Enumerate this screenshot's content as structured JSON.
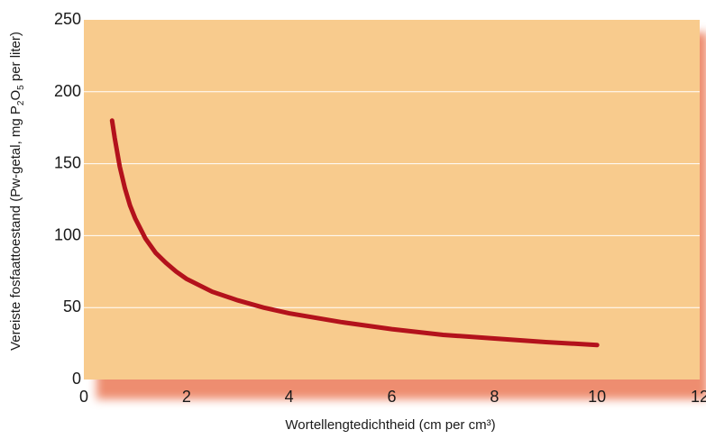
{
  "chart_data": {
    "type": "line",
    "title": "",
    "xlabel": "Wortellengtedichtheid (cm per cm³)",
    "ylabel": {
      "main": "Vereiste fosfaattoestand (Pw-getal, mg P",
      "sub1": "2",
      "mid": "O",
      "sub2": "5",
      "end": " per liter)"
    },
    "xlim": [
      0,
      12
    ],
    "ylim": [
      0,
      250
    ],
    "xticks": [
      "0",
      "2",
      "4",
      "6",
      "8",
      "10",
      "12"
    ],
    "yticks": [
      "0",
      "50",
      "100",
      "150",
      "200",
      "250"
    ],
    "grid": "horizontal",
    "colors": {
      "plot_background": "#f8cb8d",
      "shadow": "#ee8d70",
      "gridline": "#ffffff",
      "line": "#b3121c"
    },
    "series": [
      {
        "x": [
          0.55,
          0.6,
          0.7,
          0.8,
          0.9,
          1.0,
          1.2,
          1.4,
          1.6,
          1.8,
          2.0,
          2.5,
          3.0,
          3.5,
          4.0,
          5.0,
          6.0,
          7.0,
          8.0,
          9.0,
          10.0
        ],
        "y": [
          180,
          168,
          148,
          133,
          121,
          112,
          98,
          88,
          81,
          75,
          70,
          61,
          55,
          50,
          46,
          40,
          35,
          31,
          28.5,
          26,
          24
        ]
      }
    ]
  }
}
